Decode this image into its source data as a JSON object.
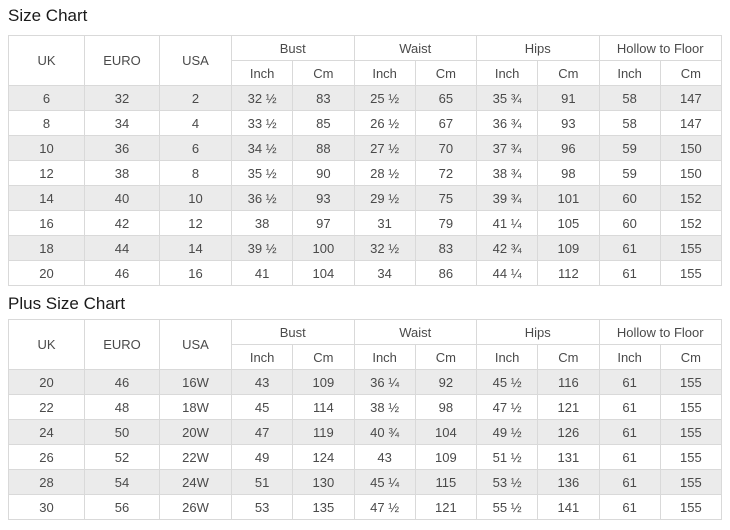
{
  "titles": {
    "size_chart": "Size Chart",
    "plus_size_chart": "Plus Size Chart"
  },
  "columns": {
    "uk": "UK",
    "euro": "EURO",
    "usa": "USA",
    "groups": [
      "Bust",
      "Waist",
      "Hips",
      "Hollow to Floor"
    ],
    "sub_inch": "Inch",
    "sub_cm": "Cm"
  },
  "size_chart": {
    "rows": [
      [
        "6",
        "32",
        "2",
        "32 ½",
        "83",
        "25 ½",
        "65",
        "35 ¾",
        "91",
        "58",
        "147"
      ],
      [
        "8",
        "34",
        "4",
        "33 ½",
        "85",
        "26 ½",
        "67",
        "36 ¾",
        "93",
        "58",
        "147"
      ],
      [
        "10",
        "36",
        "6",
        "34 ½",
        "88",
        "27 ½",
        "70",
        "37 ¾",
        "96",
        "59",
        "150"
      ],
      [
        "12",
        "38",
        "8",
        "35 ½",
        "90",
        "28 ½",
        "72",
        "38 ¾",
        "98",
        "59",
        "150"
      ],
      [
        "14",
        "40",
        "10",
        "36 ½",
        "93",
        "29 ½",
        "75",
        "39 ¾",
        "101",
        "60",
        "152"
      ],
      [
        "16",
        "42",
        "12",
        "38",
        "97",
        "31",
        "79",
        "41 ¼",
        "105",
        "60",
        "152"
      ],
      [
        "18",
        "44",
        "14",
        "39 ½",
        "100",
        "32 ½",
        "83",
        "42 ¾",
        "109",
        "61",
        "155"
      ],
      [
        "20",
        "46",
        "16",
        "41",
        "104",
        "34",
        "86",
        "44 ¼",
        "112",
        "61",
        "155"
      ]
    ]
  },
  "plus_size_chart": {
    "rows": [
      [
        "20",
        "46",
        "16W",
        "43",
        "109",
        "36 ¼",
        "92",
        "45 ½",
        "116",
        "61",
        "155"
      ],
      [
        "22",
        "48",
        "18W",
        "45",
        "114",
        "38 ½",
        "98",
        "47 ½",
        "121",
        "61",
        "155"
      ],
      [
        "24",
        "50",
        "20W",
        "47",
        "119",
        "40 ¾",
        "104",
        "49 ½",
        "126",
        "61",
        "155"
      ],
      [
        "26",
        "52",
        "22W",
        "49",
        "124",
        "43",
        "109",
        "51 ½",
        "131",
        "61",
        "155"
      ],
      [
        "28",
        "54",
        "24W",
        "51",
        "130",
        "45 ¼",
        "115",
        "53 ½",
        "136",
        "61",
        "155"
      ],
      [
        "30",
        "56",
        "26W",
        "53",
        "135",
        "47 ½",
        "121",
        "55 ½",
        "141",
        "61",
        "155"
      ]
    ]
  },
  "colors": {
    "background": "#ffffff",
    "row_alt": "#ebebeb",
    "border": "#d9d9d9",
    "text": "#4a4a4a",
    "title": "#1a1a1a"
  }
}
